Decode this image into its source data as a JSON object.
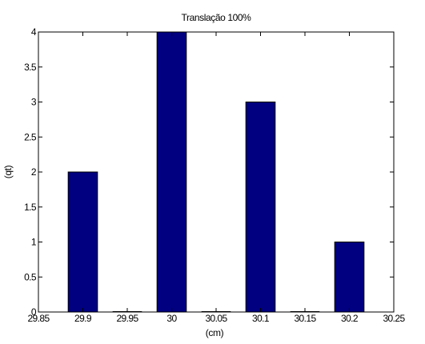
{
  "chart_data": {
    "type": "bar",
    "title": "Translação 100%",
    "xlabel": "(cm)",
    "ylabel": "(qt)",
    "xlim": [
      29.85,
      30.25
    ],
    "ylim": [
      0,
      4
    ],
    "x": [
      29.9,
      29.95,
      30,
      30.05,
      30.1,
      30.15,
      30.2
    ],
    "values": [
      2,
      0,
      4,
      0,
      3,
      0,
      1
    ],
    "bar_width": 0.0165,
    "xticks": [
      "29.85",
      "29.9",
      "29.95",
      "30",
      "30.05",
      "30.1",
      "30.15",
      "30.2",
      "30.25"
    ],
    "yticks": [
      "0",
      "0.5",
      "1",
      "1.5",
      "2",
      "2.5",
      "3",
      "3.5",
      "4"
    ],
    "bar_color": "#000080",
    "grid": false,
    "legend": "none"
  }
}
